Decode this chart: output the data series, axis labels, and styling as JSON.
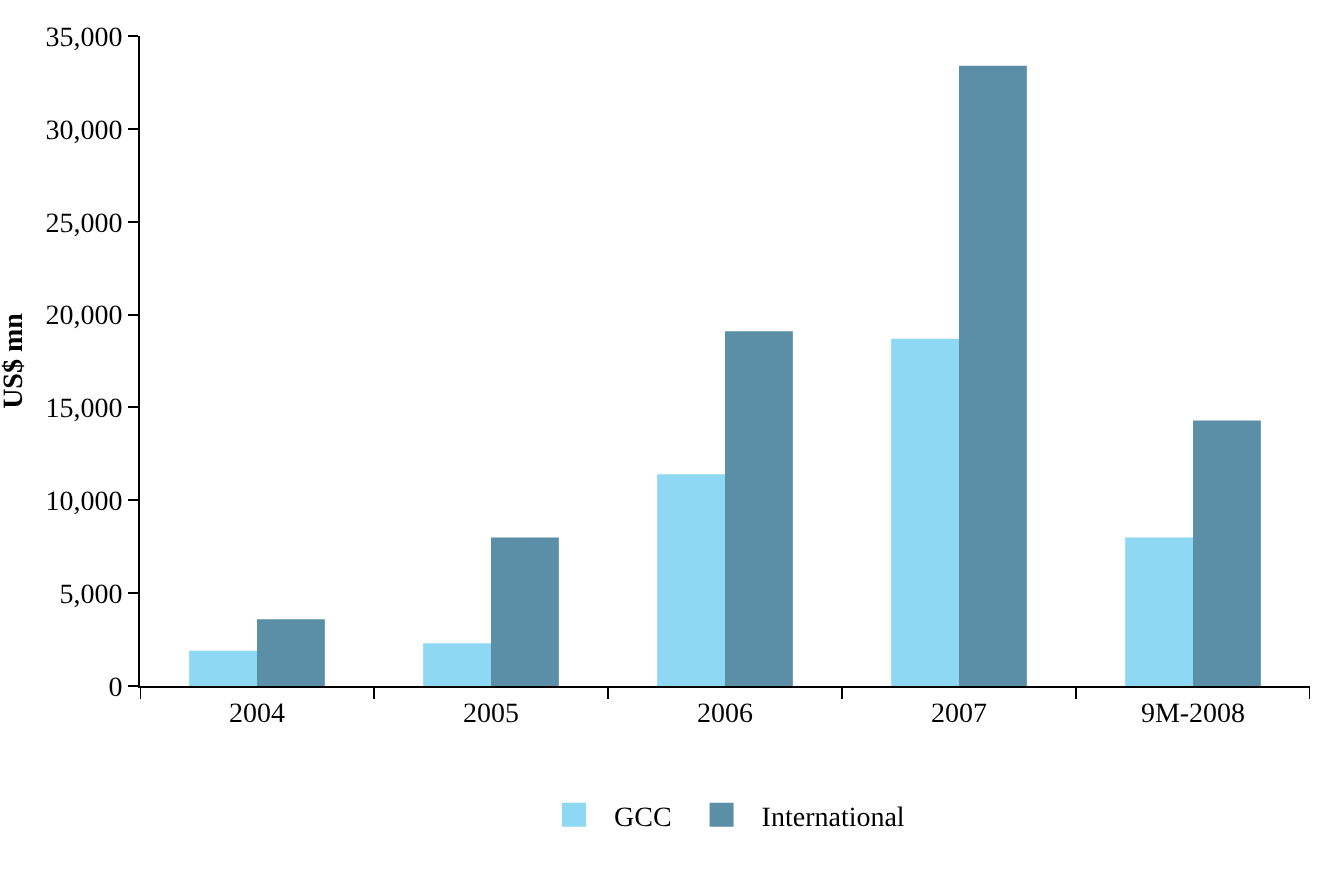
{
  "chart_data": {
    "type": "bar",
    "ylabel": "US$ mn",
    "categories": [
      "2004",
      "2005",
      "2006",
      "2007",
      "9M-2008"
    ],
    "series": [
      {
        "name": "GCC",
        "color": "#8fd8f4",
        "values": [
          1900,
          2300,
          11400,
          18700,
          8000
        ]
      },
      {
        "name": "International",
        "color": "#5b8fa8",
        "values": [
          3600,
          8000,
          19100,
          33400,
          14300
        ]
      }
    ],
    "ylim": [
      0,
      35000
    ],
    "yticks": [
      {
        "value": 0,
        "label": "0"
      },
      {
        "value": 5000,
        "label": "5,000"
      },
      {
        "value": 10000,
        "label": "10,000"
      },
      {
        "value": 15000,
        "label": "15,000"
      },
      {
        "value": 20000,
        "label": "20,000"
      },
      {
        "value": 25000,
        "label": "25,000"
      },
      {
        "value": 30000,
        "label": "30,000"
      },
      {
        "value": 35000,
        "label": "35,000"
      }
    ],
    "grid": false,
    "legend": "bottom"
  }
}
